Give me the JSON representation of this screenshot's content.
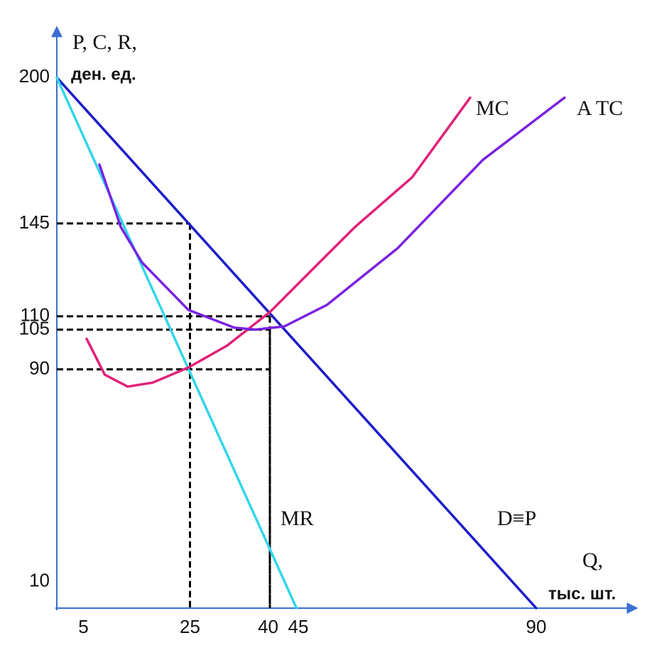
{
  "chart_data": {
    "type": "line",
    "y_label": [
      "P, C, R,",
      "ден. ед."
    ],
    "x_label": [
      "Q,",
      "тыс. шт."
    ],
    "xlim": [
      0,
      108
    ],
    "ylim": [
      0,
      218
    ],
    "xticks": [
      5,
      25,
      40,
      45,
      90
    ],
    "yticks": [
      10,
      90,
      105,
      110,
      145,
      200
    ],
    "grid": false,
    "series": [
      {
        "name": "D≡P",
        "color": "#1c1cc8",
        "x": [
          0,
          90
        ],
        "values": [
          200,
          0
        ]
      },
      {
        "name": "MR",
        "color": "#33d6ea",
        "x": [
          0,
          45
        ],
        "values": [
          200,
          0
        ]
      },
      {
        "name": "MC",
        "color": "#e0207a",
        "x": [
          5.6,
          9,
          13.3,
          18,
          24.7,
          32,
          40,
          49.3,
          56,
          66.7,
          77.6
        ],
        "values": [
          101.5,
          88,
          83.5,
          85,
          90.7,
          99,
          111.6,
          130.3,
          143.7,
          162.4,
          192.4
        ]
      },
      {
        "name": "A TC",
        "color": "#7a22e0",
        "x": [
          8,
          12,
          16,
          24.7,
          33.3,
          37.3,
          42.7,
          50.7,
          64,
          80,
          95.3
        ],
        "values": [
          167.2,
          143.7,
          130.3,
          112.4,
          105.7,
          105,
          106.2,
          114.3,
          135.7,
          169,
          192.4
        ]
      }
    ],
    "guides": [
      {
        "x": 25,
        "y": 145
      },
      {
        "x": 40,
        "y": 110
      },
      {
        "x": 40,
        "y": 105
      },
      {
        "x": 40,
        "y": 90
      }
    ]
  }
}
